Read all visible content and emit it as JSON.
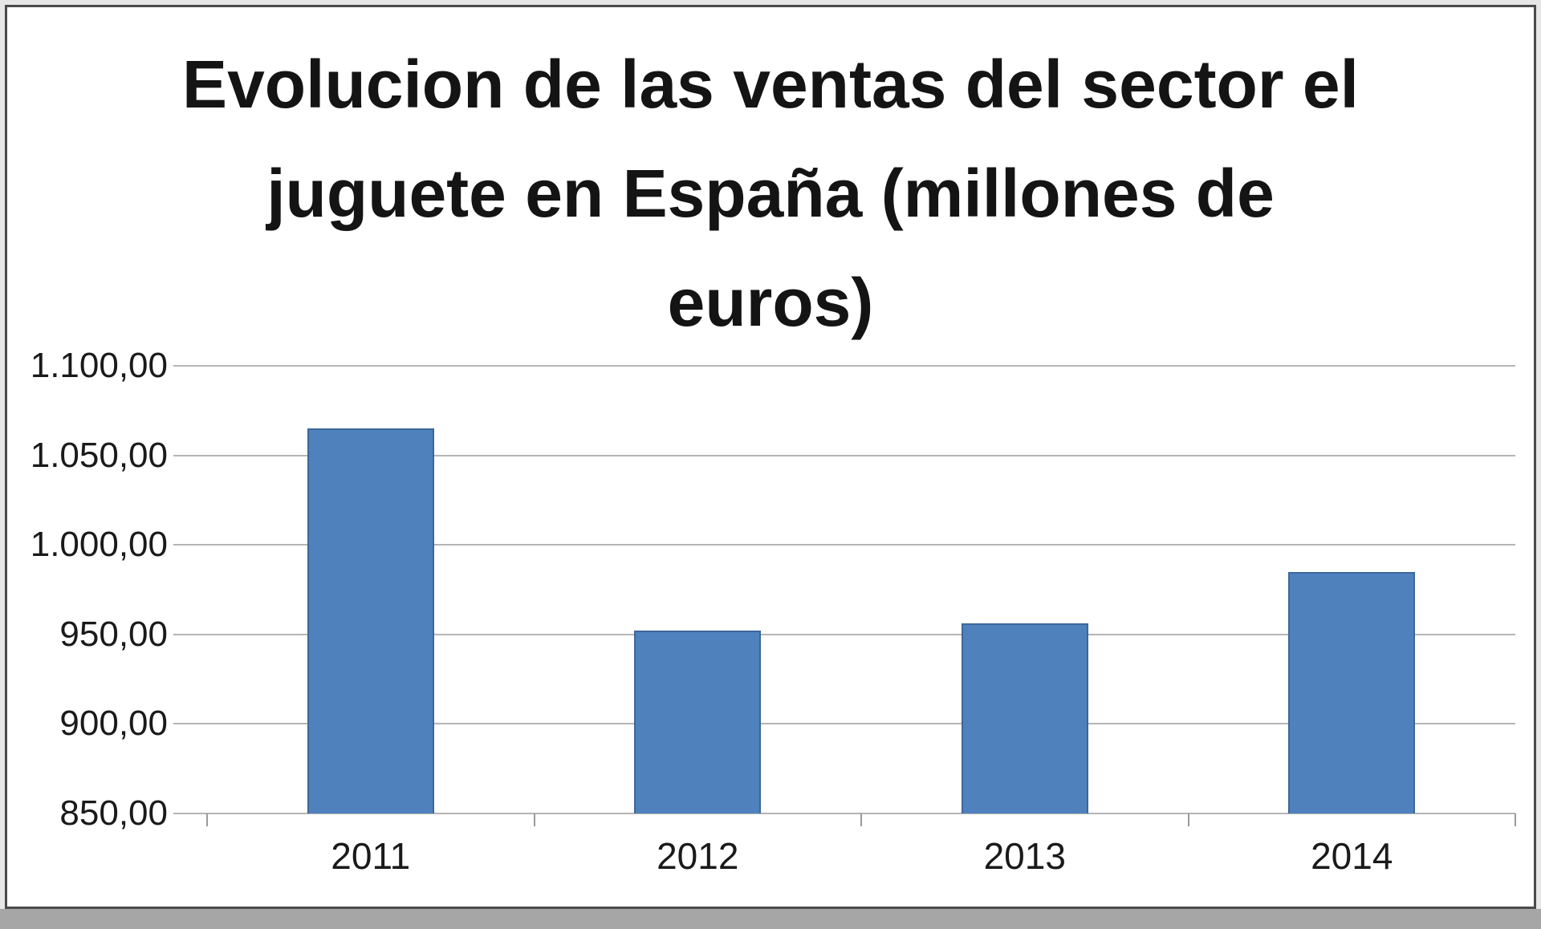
{
  "chart_data": {
    "type": "bar",
    "title": "Evolucion de las ventas del sector el juguete en España (millones de euros)",
    "title_lines": [
      "Evolucion de las ventas del sector el",
      "juguete en España (millones de",
      "euros)"
    ],
    "categories": [
      "2011",
      "2012",
      "2013",
      "2014"
    ],
    "values": [
      1065,
      952,
      956,
      985
    ],
    "xlabel": "",
    "ylabel": "",
    "ylim": [
      850,
      1100
    ],
    "yticks": [
      850,
      900,
      950,
      1000,
      1050,
      1100
    ],
    "ytick_labels": [
      "850,00",
      "900,00",
      "950,00",
      "1.000,00",
      "1.050,00",
      "1.100,00"
    ],
    "grid": true,
    "legend": false,
    "bar_fill": "#4f81bd",
    "bar_border": "#3d679a",
    "gridline_color": "#b5b5b5",
    "tick_color": "#9a9a9a"
  }
}
